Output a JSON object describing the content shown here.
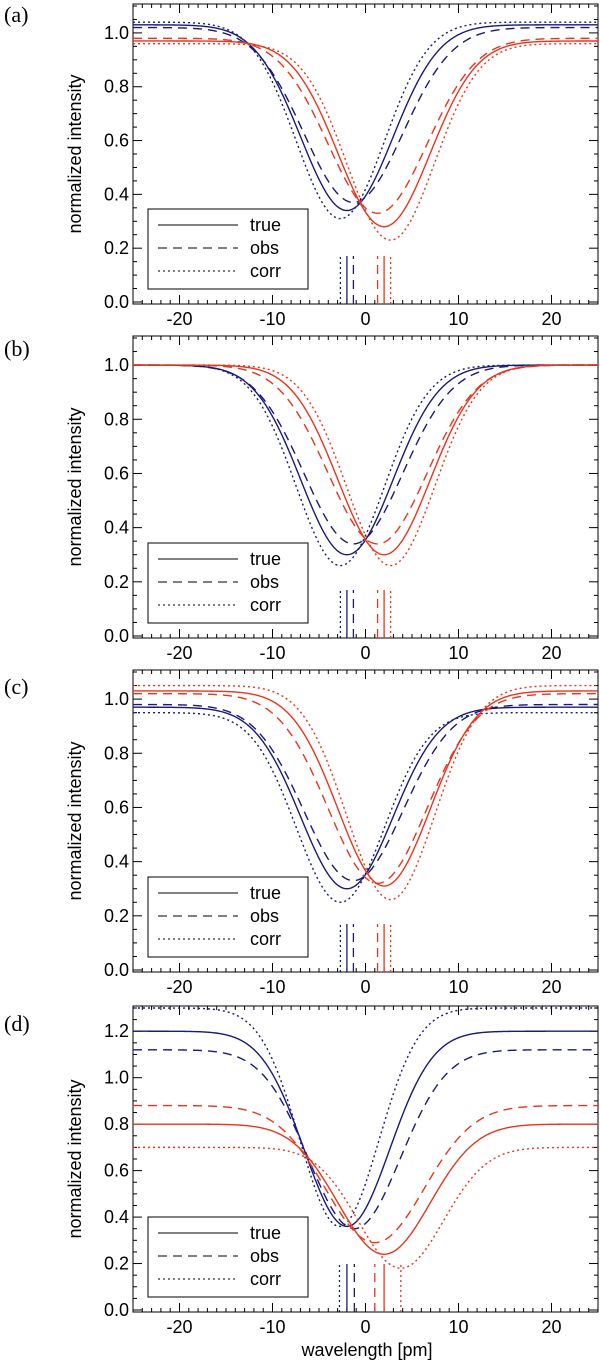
{
  "figure": {
    "x_axis_label": "wavelength [pm]",
    "colors": {
      "blue": "#1a1a7a",
      "red": "#e8351e",
      "axis": "#000000"
    }
  },
  "chart_data": [
    {
      "type": "line",
      "panel_label": "(a)",
      "xlabel": "",
      "ylabel": "normalized intensity",
      "xlim": [
        -25,
        25
      ],
      "ylim": [
        0,
        1.1
      ],
      "xticks": [
        -20,
        -10,
        0,
        10,
        20
      ],
      "yticks": [
        0.0,
        0.2,
        0.4,
        0.6,
        0.8,
        1.0
      ],
      "legend": {
        "placement": "bottom-left",
        "entries": [
          {
            "label": "true",
            "style": "solid"
          },
          {
            "label": "obs",
            "style": "dashed"
          },
          {
            "label": "corr",
            "style": "dotted"
          }
        ]
      },
      "series": [
        {
          "name": "blue true",
          "color": "blue",
          "style": "solid",
          "center": -2.0,
          "depth": 0.69,
          "width": 7.0,
          "left": 1.03,
          "right": 1.03
        },
        {
          "name": "blue obs",
          "color": "blue",
          "style": "dashed",
          "center": -1.3,
          "depth": 0.65,
          "width": 7.5,
          "left": 1.02,
          "right": 1.02
        },
        {
          "name": "blue corr",
          "color": "blue",
          "style": "dotted",
          "center": -2.7,
          "depth": 0.73,
          "width": 6.7,
          "left": 1.04,
          "right": 1.04
        },
        {
          "name": "red true",
          "color": "red",
          "style": "solid",
          "center": 2.0,
          "depth": 0.69,
          "width": 7.0,
          "left": 0.97,
          "right": 0.97
        },
        {
          "name": "red obs",
          "color": "red",
          "style": "dashed",
          "center": 1.3,
          "depth": 0.65,
          "width": 7.5,
          "left": 0.98,
          "right": 0.98
        },
        {
          "name": "red corr",
          "color": "red",
          "style": "dotted",
          "center": 2.7,
          "depth": 0.73,
          "width": 6.7,
          "left": 0.96,
          "right": 0.96
        }
      ]
    },
    {
      "type": "line",
      "panel_label": "(b)",
      "xlabel": "",
      "ylabel": "normalized intensity",
      "xlim": [
        -25,
        25
      ],
      "ylim": [
        0,
        1.1
      ],
      "xticks": [
        -20,
        -10,
        0,
        10,
        20
      ],
      "yticks": [
        0.0,
        0.2,
        0.4,
        0.6,
        0.8,
        1.0
      ],
      "legend": {
        "placement": "bottom-left",
        "entries": [
          {
            "label": "true",
            "style": "solid"
          },
          {
            "label": "obs",
            "style": "dashed"
          },
          {
            "label": "corr",
            "style": "dotted"
          }
        ]
      },
      "series": [
        {
          "name": "blue true",
          "color": "blue",
          "style": "solid",
          "center": -2.0,
          "depth": 0.7,
          "width": 7.0,
          "left": 1.0,
          "right": 1.0
        },
        {
          "name": "blue obs",
          "color": "blue",
          "style": "dashed",
          "center": -1.3,
          "depth": 0.66,
          "width": 7.5,
          "left": 1.0,
          "right": 1.0
        },
        {
          "name": "blue corr",
          "color": "blue",
          "style": "dotted",
          "center": -2.7,
          "depth": 0.74,
          "width": 6.7,
          "left": 1.0,
          "right": 1.0
        },
        {
          "name": "red true",
          "color": "red",
          "style": "solid",
          "center": 2.0,
          "depth": 0.7,
          "width": 7.0,
          "left": 1.0,
          "right": 1.0
        },
        {
          "name": "red obs",
          "color": "red",
          "style": "dashed",
          "center": 1.3,
          "depth": 0.66,
          "width": 7.5,
          "left": 1.0,
          "right": 1.0
        },
        {
          "name": "red corr",
          "color": "red",
          "style": "dotted",
          "center": 2.7,
          "depth": 0.74,
          "width": 6.7,
          "left": 1.0,
          "right": 1.0
        }
      ]
    },
    {
      "type": "line",
      "panel_label": "(c)",
      "xlabel": "",
      "ylabel": "normalized intensity",
      "xlim": [
        -25,
        25
      ],
      "ylim": [
        0,
        1.1
      ],
      "xticks": [
        -20,
        -10,
        0,
        10,
        20
      ],
      "yticks": [
        0.0,
        0.2,
        0.4,
        0.6,
        0.8,
        1.0
      ],
      "legend": {
        "placement": "bottom-left",
        "entries": [
          {
            "label": "true",
            "style": "solid"
          },
          {
            "label": "obs",
            "style": "dashed"
          },
          {
            "label": "corr",
            "style": "dotted"
          }
        ]
      },
      "series": [
        {
          "name": "blue true",
          "color": "blue",
          "style": "solid",
          "center": -2.0,
          "depth": 0.67,
          "width": 7.0,
          "left": 0.97,
          "right": 0.97
        },
        {
          "name": "blue obs",
          "color": "blue",
          "style": "dashed",
          "center": -1.3,
          "depth": 0.65,
          "width": 7.5,
          "left": 0.98,
          "right": 0.98
        },
        {
          "name": "blue corr",
          "color": "blue",
          "style": "dotted",
          "center": -2.7,
          "depth": 0.7,
          "width": 6.7,
          "left": 0.95,
          "right": 0.95
        },
        {
          "name": "red true",
          "color": "red",
          "style": "solid",
          "center": 2.0,
          "depth": 0.72,
          "width": 7.0,
          "left": 1.03,
          "right": 1.03
        },
        {
          "name": "red obs",
          "color": "red",
          "style": "dashed",
          "center": 1.3,
          "depth": 0.7,
          "width": 7.5,
          "left": 1.02,
          "right": 1.02
        },
        {
          "name": "red corr",
          "color": "red",
          "style": "dotted",
          "center": 2.7,
          "depth": 0.79,
          "width": 6.7,
          "left": 1.05,
          "right": 1.05
        }
      ]
    },
    {
      "type": "line",
      "panel_label": "(d)",
      "xlabel": "wavelength [pm]",
      "ylabel": "normalized intensity",
      "xlim": [
        -25,
        25
      ],
      "ylim": [
        0,
        1.3
      ],
      "xticks": [
        -20,
        -10,
        0,
        10,
        20
      ],
      "yticks": [
        0.0,
        0.2,
        0.4,
        0.6,
        0.8,
        1.0,
        1.2
      ],
      "legend": {
        "placement": "bottom-left",
        "entries": [
          {
            "label": "true",
            "style": "solid"
          },
          {
            "label": "obs",
            "style": "dashed"
          },
          {
            "label": "corr",
            "style": "dotted"
          }
        ]
      },
      "series": [
        {
          "name": "blue true",
          "color": "blue",
          "style": "solid",
          "center": -2.0,
          "depth": 0.84,
          "width": 6.5,
          "left": 1.2,
          "right": 1.2
        },
        {
          "name": "blue obs",
          "color": "blue",
          "style": "dashed",
          "center": -1.2,
          "depth": 0.77,
          "width": 7.0,
          "left": 1.12,
          "right": 1.12
        },
        {
          "name": "blue corr",
          "color": "blue",
          "style": "dotted",
          "center": -2.8,
          "depth": 0.94,
          "width": 6.0,
          "left": 1.3,
          "right": 1.3
        },
        {
          "name": "red true",
          "color": "red",
          "style": "solid",
          "center": 2.0,
          "depth": 0.56,
          "width": 7.0,
          "left": 0.8,
          "right": 0.8
        },
        {
          "name": "red obs",
          "color": "red",
          "style": "dashed",
          "center": 1.0,
          "depth": 0.59,
          "width": 7.5,
          "left": 0.88,
          "right": 0.88
        },
        {
          "name": "red corr",
          "color": "red",
          "style": "dotted",
          "center": 3.8,
          "depth": 0.52,
          "width": 6.5,
          "left": 0.7,
          "right": 0.7
        }
      ]
    }
  ]
}
